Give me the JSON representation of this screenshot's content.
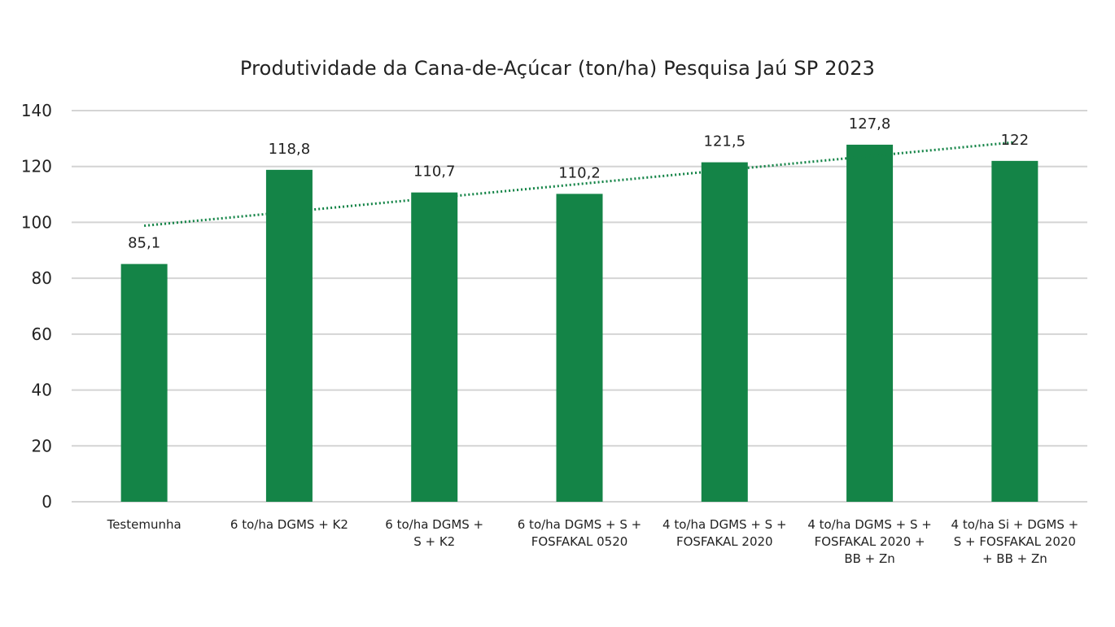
{
  "chart_data": {
    "type": "bar",
    "title": "Produtividade da Cana-de-Açúcar (ton/ha) Pesquisa Jaú SP 2023",
    "xlabel": "",
    "ylabel": "",
    "ylim": [
      0,
      140
    ],
    "yticks": [
      "0",
      "20",
      "40",
      "60",
      "80",
      "100",
      "120",
      "140"
    ],
    "grid": true,
    "legend": "none",
    "categories": [
      "Testemunha",
      "6 to/ha DGMS + K2",
      "6 to/ha DGMS + S + K2",
      "6 to/ha DGMS + S + FOSFAKAL 0520",
      "4 to/ha DGMS + S + FOSFAKAL 2020",
      "4 to/ha DGMS + S + FOSFAKAL 2020 + BB + Zn",
      "4 to/ha Si + DGMS + S + FOSFAKAL 2020 + BB + Zn"
    ],
    "category_lines": [
      [
        "Testemunha"
      ],
      [
        "6 to/ha DGMS + K2"
      ],
      [
        "6 to/ha DGMS +",
        "S + K2"
      ],
      [
        "6 to/ha DGMS + S +",
        "FOSFAKAL 0520"
      ],
      [
        "4 to/ha DGMS + S +",
        "FOSFAKAL 2020"
      ],
      [
        "4 to/ha DGMS + S +",
        "FOSFAKAL 2020 +",
        "BB + Zn"
      ],
      [
        "4 to/ha Si + DGMS +",
        "S + FOSFAKAL 2020",
        "+ BB + Zn"
      ]
    ],
    "values": [
      85.1,
      118.8,
      110.7,
      110.2,
      121.5,
      127.8,
      122
    ],
    "data_labels": [
      "85,1",
      "118,8",
      "110,7",
      "110,2",
      "121,5",
      "127,8",
      "122"
    ],
    "trendline": {
      "type": "linear",
      "style": "dotted"
    },
    "colors": {
      "bar": "#148447",
      "trendline": "#148447",
      "grid": "#d4d4d4",
      "text": "#222222"
    }
  }
}
